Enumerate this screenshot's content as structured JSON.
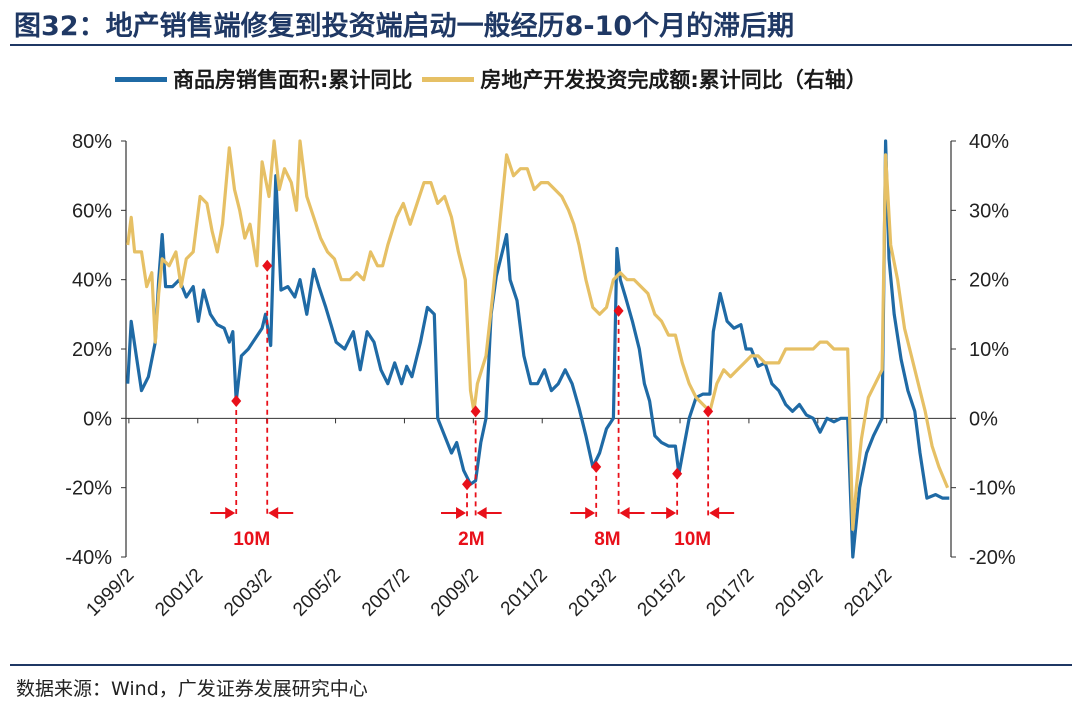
{
  "title": "图32：地产销售端修复到投资端启动一般经历8-10个月的滞后期",
  "source": "数据来源：Wind，广发证券发展研究中心",
  "chart_data": {
    "type": "line",
    "legend": [
      {
        "name": "商品房销售面积:累计同比",
        "color": "#1f6aa5",
        "axis": "left"
      },
      {
        "name": "房地产开发投资完成额:累计同比（右轴）",
        "color": "#e6c065",
        "axis": "right"
      }
    ],
    "x_range": [
      1999.0,
      2022.95
    ],
    "x_ticks": [
      "1999/2",
      "2001/2",
      "2003/2",
      "2005/2",
      "2007/2",
      "2009/2",
      "2011/2",
      "2013/2",
      "2015/2",
      "2017/2",
      "2019/2",
      "2021/2"
    ],
    "left_axis": {
      "min": -40,
      "max": 80,
      "ticks": [
        "-40%",
        "-20%",
        "0%",
        "20%",
        "40%",
        "60%",
        "80%"
      ]
    },
    "right_axis": {
      "min": -20,
      "max": 40,
      "ticks": [
        "-20%",
        "-10%",
        "0%",
        "10%",
        "20%",
        "30%",
        "40%"
      ]
    },
    "series": [
      {
        "name": "商品房销售面积:累计同比",
        "axis": "left",
        "points": [
          [
            1999.05,
            10
          ],
          [
            1999.15,
            28
          ],
          [
            1999.3,
            18
          ],
          [
            1999.45,
            8
          ],
          [
            1999.65,
            12
          ],
          [
            1999.85,
            22
          ],
          [
            1999.95,
            40
          ],
          [
            2000.05,
            53
          ],
          [
            2000.15,
            38
          ],
          [
            2000.35,
            38
          ],
          [
            2000.55,
            40
          ],
          [
            2000.75,
            35
          ],
          [
            2000.95,
            38
          ],
          [
            2001.1,
            28
          ],
          [
            2001.25,
            37
          ],
          [
            2001.45,
            30
          ],
          [
            2001.65,
            27
          ],
          [
            2001.85,
            26
          ],
          [
            2002.0,
            22
          ],
          [
            2002.1,
            25
          ],
          [
            2002.2,
            5
          ],
          [
            2002.35,
            18
          ],
          [
            2002.55,
            20
          ],
          [
            2002.75,
            23
          ],
          [
            2002.95,
            26
          ],
          [
            2003.05,
            30
          ],
          [
            2003.2,
            21
          ],
          [
            2003.35,
            70
          ],
          [
            2003.5,
            37
          ],
          [
            2003.7,
            38
          ],
          [
            2003.9,
            35
          ],
          [
            2004.05,
            40
          ],
          [
            2004.25,
            30
          ],
          [
            2004.45,
            43
          ],
          [
            2004.6,
            38
          ],
          [
            2004.8,
            32
          ],
          [
            2004.95,
            27
          ],
          [
            2005.1,
            22
          ],
          [
            2005.35,
            20
          ],
          [
            2005.6,
            25
          ],
          [
            2005.8,
            14
          ],
          [
            2006.0,
            25
          ],
          [
            2006.2,
            22
          ],
          [
            2006.4,
            14
          ],
          [
            2006.6,
            10
          ],
          [
            2006.8,
            16
          ],
          [
            2007.0,
            10
          ],
          [
            2007.15,
            15
          ],
          [
            2007.3,
            12
          ],
          [
            2007.55,
            22
          ],
          [
            2007.75,
            32
          ],
          [
            2007.95,
            30
          ],
          [
            2008.05,
            0
          ],
          [
            2008.25,
            -5
          ],
          [
            2008.45,
            -10
          ],
          [
            2008.6,
            -7
          ],
          [
            2008.8,
            -15
          ],
          [
            2009.0,
            -19
          ],
          [
            2009.15,
            -18
          ],
          [
            2009.3,
            -7
          ],
          [
            2009.45,
            0
          ],
          [
            2009.6,
            30
          ],
          [
            2009.75,
            41
          ],
          [
            2009.95,
            49
          ],
          [
            2010.05,
            53
          ],
          [
            2010.15,
            40
          ],
          [
            2010.35,
            34
          ],
          [
            2010.55,
            18
          ],
          [
            2010.75,
            10
          ],
          [
            2010.95,
            10
          ],
          [
            2011.15,
            14
          ],
          [
            2011.35,
            8
          ],
          [
            2011.55,
            10
          ],
          [
            2011.75,
            14
          ],
          [
            2011.95,
            10
          ],
          [
            2012.15,
            3
          ],
          [
            2012.35,
            -5
          ],
          [
            2012.55,
            -14
          ],
          [
            2012.75,
            -10
          ],
          [
            2012.95,
            -3
          ],
          [
            2013.15,
            0
          ],
          [
            2013.25,
            49
          ],
          [
            2013.35,
            40
          ],
          [
            2013.5,
            35
          ],
          [
            2013.7,
            28
          ],
          [
            2013.9,
            20
          ],
          [
            2014.05,
            10
          ],
          [
            2014.2,
            5
          ],
          [
            2014.35,
            -5
          ],
          [
            2014.55,
            -7
          ],
          [
            2014.75,
            -8
          ],
          [
            2014.95,
            -8
          ],
          [
            2015.05,
            -16
          ],
          [
            2015.2,
            -8
          ],
          [
            2015.35,
            0
          ],
          [
            2015.55,
            6
          ],
          [
            2015.75,
            7
          ],
          [
            2015.95,
            7
          ],
          [
            2016.05,
            25
          ],
          [
            2016.25,
            36
          ],
          [
            2016.45,
            28
          ],
          [
            2016.65,
            26
          ],
          [
            2016.85,
            27
          ],
          [
            2017.0,
            20
          ],
          [
            2017.15,
            20
          ],
          [
            2017.35,
            15
          ],
          [
            2017.55,
            16
          ],
          [
            2017.75,
            10
          ],
          [
            2017.95,
            8
          ],
          [
            2018.15,
            4
          ],
          [
            2018.35,
            2
          ],
          [
            2018.55,
            4
          ],
          [
            2018.75,
            1
          ],
          [
            2018.95,
            0
          ],
          [
            2019.15,
            -4
          ],
          [
            2019.35,
            0
          ],
          [
            2019.55,
            -1
          ],
          [
            2019.75,
            0
          ],
          [
            2019.95,
            0
          ],
          [
            2020.1,
            -40
          ],
          [
            2020.3,
            -20
          ],
          [
            2020.5,
            -10
          ],
          [
            2020.7,
            -5
          ],
          [
            2020.95,
            0
          ],
          [
            2021.05,
            80
          ],
          [
            2021.15,
            46
          ],
          [
            2021.3,
            30
          ],
          [
            2021.5,
            17
          ],
          [
            2021.7,
            8
          ],
          [
            2021.9,
            2
          ],
          [
            2022.05,
            -10
          ],
          [
            2022.25,
            -23
          ],
          [
            2022.5,
            -22
          ],
          [
            2022.7,
            -23
          ],
          [
            2022.9,
            -23
          ]
        ]
      },
      {
        "name": "房地产开发投资完成额:累计同比（右轴）",
        "axis": "right",
        "points": [
          [
            1999.05,
            25
          ],
          [
            1999.15,
            29
          ],
          [
            1999.25,
            24
          ],
          [
            1999.45,
            24
          ],
          [
            1999.6,
            19
          ],
          [
            1999.75,
            21
          ],
          [
            1999.85,
            11
          ],
          [
            1999.95,
            18
          ],
          [
            2000.05,
            23
          ],
          [
            2000.25,
            22
          ],
          [
            2000.45,
            24
          ],
          [
            2000.6,
            19
          ],
          [
            2000.75,
            23
          ],
          [
            2000.95,
            24
          ],
          [
            2001.15,
            32
          ],
          [
            2001.35,
            31
          ],
          [
            2001.5,
            27
          ],
          [
            2001.65,
            24
          ],
          [
            2001.8,
            28
          ],
          [
            2002.0,
            39
          ],
          [
            2002.15,
            33
          ],
          [
            2002.3,
            30
          ],
          [
            2002.45,
            26
          ],
          [
            2002.6,
            28
          ],
          [
            2002.8,
            22
          ],
          [
            2002.95,
            37
          ],
          [
            2003.15,
            32
          ],
          [
            2003.3,
            40
          ],
          [
            2003.45,
            33
          ],
          [
            2003.6,
            36
          ],
          [
            2003.8,
            34
          ],
          [
            2003.95,
            30
          ],
          [
            2004.05,
            40
          ],
          [
            2004.25,
            32
          ],
          [
            2004.45,
            29
          ],
          [
            2004.65,
            26
          ],
          [
            2004.85,
            24
          ],
          [
            2005.05,
            23
          ],
          [
            2005.25,
            20
          ],
          [
            2005.5,
            20
          ],
          [
            2005.7,
            21
          ],
          [
            2005.9,
            20
          ],
          [
            2006.1,
            24
          ],
          [
            2006.3,
            22
          ],
          [
            2006.45,
            22
          ],
          [
            2006.6,
            25
          ],
          [
            2006.85,
            29
          ],
          [
            2007.05,
            31
          ],
          [
            2007.25,
            28
          ],
          [
            2007.45,
            31
          ],
          [
            2007.65,
            34
          ],
          [
            2007.85,
            34
          ],
          [
            2008.05,
            31
          ],
          [
            2008.25,
            32
          ],
          [
            2008.45,
            29
          ],
          [
            2008.65,
            24
          ],
          [
            2008.85,
            20
          ],
          [
            2009.0,
            4
          ],
          [
            2009.1,
            1
          ],
          [
            2009.2,
            5
          ],
          [
            2009.45,
            9
          ],
          [
            2009.65,
            18
          ],
          [
            2009.85,
            28
          ],
          [
            2010.05,
            38
          ],
          [
            2010.25,
            35
          ],
          [
            2010.45,
            36
          ],
          [
            2010.65,
            36
          ],
          [
            2010.85,
            33
          ],
          [
            2011.05,
            34
          ],
          [
            2011.25,
            34
          ],
          [
            2011.45,
            33
          ],
          [
            2011.65,
            32
          ],
          [
            2011.85,
            30
          ],
          [
            2012.0,
            28
          ],
          [
            2012.15,
            25
          ],
          [
            2012.35,
            20
          ],
          [
            2012.55,
            16
          ],
          [
            2012.75,
            15
          ],
          [
            2012.95,
            16
          ],
          [
            2013.15,
            20
          ],
          [
            2013.35,
            21
          ],
          [
            2013.55,
            20
          ],
          [
            2013.75,
            20
          ],
          [
            2013.95,
            19
          ],
          [
            2014.15,
            18
          ],
          [
            2014.35,
            15
          ],
          [
            2014.55,
            14
          ],
          [
            2014.75,
            12
          ],
          [
            2014.95,
            12
          ],
          [
            2015.15,
            8
          ],
          [
            2015.35,
            5
          ],
          [
            2015.55,
            3
          ],
          [
            2015.75,
            2
          ],
          [
            2015.95,
            1
          ],
          [
            2016.15,
            5
          ],
          [
            2016.35,
            7
          ],
          [
            2016.55,
            6
          ],
          [
            2016.75,
            7
          ],
          [
            2016.95,
            8
          ],
          [
            2017.15,
            9
          ],
          [
            2017.35,
            9
          ],
          [
            2017.55,
            8
          ],
          [
            2017.75,
            8
          ],
          [
            2017.95,
            8
          ],
          [
            2018.15,
            10
          ],
          [
            2018.35,
            10
          ],
          [
            2018.55,
            10
          ],
          [
            2018.75,
            10
          ],
          [
            2018.95,
            10
          ],
          [
            2019.15,
            11
          ],
          [
            2019.35,
            11
          ],
          [
            2019.55,
            10
          ],
          [
            2019.75,
            10
          ],
          [
            2019.95,
            10
          ],
          [
            2020.1,
            -16
          ],
          [
            2020.2,
            -10
          ],
          [
            2020.35,
            -3
          ],
          [
            2020.55,
            3
          ],
          [
            2020.75,
            5
          ],
          [
            2020.95,
            7
          ],
          [
            2021.05,
            38
          ],
          [
            2021.2,
            25
          ],
          [
            2021.4,
            20
          ],
          [
            2021.6,
            13
          ],
          [
            2021.8,
            9
          ],
          [
            2022.0,
            5
          ],
          [
            2022.2,
            1
          ],
          [
            2022.4,
            -4
          ],
          [
            2022.6,
            -7
          ],
          [
            2022.85,
            -10
          ]
        ]
      }
    ],
    "markers": [
      {
        "series": "left",
        "x": 2002.2,
        "y": 5
      },
      {
        "series": "left",
        "x": 2003.1,
        "y": 44
      },
      {
        "series": "left",
        "x": 2008.9,
        "y": -19
      },
      {
        "series": "left",
        "x": 2009.15,
        "y": 2
      },
      {
        "series": "left",
        "x": 2012.65,
        "y": -14
      },
      {
        "series": "left",
        "x": 2013.3,
        "y": 31
      },
      {
        "series": "left",
        "x": 2015.0,
        "y": -16
      },
      {
        "series": "left",
        "x": 2015.9,
        "y": 2
      }
    ],
    "lag_annotations": [
      {
        "label": "10M",
        "from_x": 2002.2,
        "to_x": 2003.1
      },
      {
        "label": "2M",
        "from_x": 2008.9,
        "to_x": 2009.15
      },
      {
        "label": "8M",
        "from_x": 2012.65,
        "to_x": 2013.3
      },
      {
        "label": "10M",
        "from_x": 2015.0,
        "to_x": 2015.9
      }
    ]
  }
}
